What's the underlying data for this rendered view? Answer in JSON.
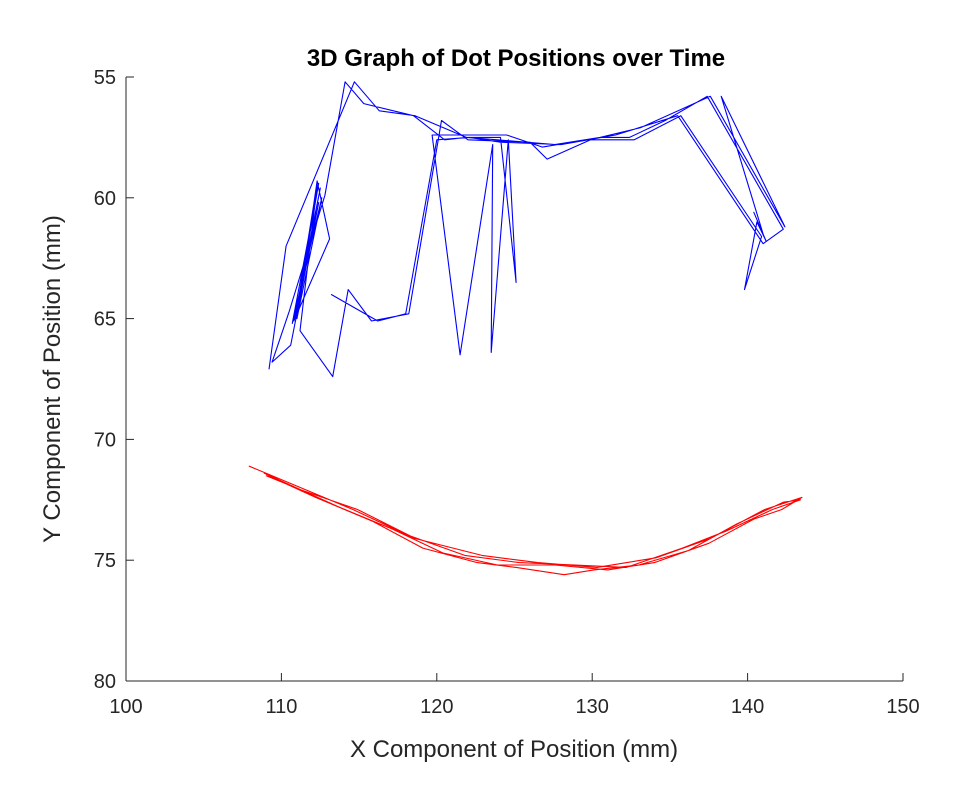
{
  "chart_data": {
    "type": "line",
    "title": "3D Graph of Dot Positions over Time",
    "xlabel": "X Component of Position (mm)",
    "ylabel": "Y Component of Position (mm)",
    "xlim": [
      100,
      150
    ],
    "ylim": [
      55,
      80
    ],
    "y_reversed": true,
    "xticks": [
      100,
      110,
      120,
      130,
      140,
      150
    ],
    "yticks": [
      55,
      60,
      65,
      70,
      75,
      80
    ],
    "grid": false,
    "legend": "none",
    "series": [
      {
        "color": "#0000ff",
        "points": [
          [
            109.2,
            67.1
          ],
          [
            110.3,
            62.0
          ],
          [
            114.7,
            55.2
          ],
          [
            116.3,
            56.4
          ],
          [
            118.6,
            56.6
          ],
          [
            121.9,
            57.5
          ],
          [
            123.9,
            57.6
          ],
          [
            127.6,
            57.8
          ],
          [
            130.5,
            57.5
          ],
          [
            133.1,
            57.1
          ],
          [
            137.6,
            55.8
          ],
          [
            142.4,
            61.2
          ],
          [
            138.3,
            55.8
          ],
          [
            141.0,
            61.5
          ],
          [
            140.4,
            60.6
          ],
          [
            141.2,
            61.8
          ],
          [
            140.6,
            61.0
          ],
          [
            139.8,
            63.8
          ],
          [
            140.9,
            61.6
          ],
          [
            135.7,
            56.6
          ],
          [
            132.7,
            57.6
          ],
          [
            129.9,
            57.6
          ],
          [
            127.1,
            58.4
          ],
          [
            126.0,
            57.7
          ],
          [
            122.0,
            57.6
          ],
          [
            120.3,
            56.8
          ],
          [
            118.2,
            64.8
          ],
          [
            115.8,
            65.1
          ],
          [
            114.3,
            63.8
          ],
          [
            113.3,
            67.4
          ],
          [
            111.2,
            65.5
          ],
          [
            112.3,
            59.5
          ],
          [
            111.0,
            65.0
          ],
          [
            112.6,
            60.0
          ],
          [
            110.7,
            65.2
          ],
          [
            112.4,
            59.4
          ],
          [
            110.9,
            64.9
          ],
          [
            112.5,
            59.6
          ],
          [
            110.8,
            65.1
          ],
          [
            113.1,
            61.7
          ],
          [
            112.3,
            59.3
          ],
          [
            111.1,
            64.7
          ],
          [
            112.2,
            59.8
          ],
          [
            110.9,
            65.0
          ],
          [
            112.4,
            60.2
          ],
          [
            110.6,
            66.1
          ],
          [
            109.4,
            66.8
          ],
          [
            110.5,
            64.7
          ],
          [
            112.8,
            59.9
          ],
          [
            114.1,
            55.2
          ],
          [
            115.3,
            56.1
          ],
          [
            118.5,
            56.6
          ],
          [
            120.5,
            57.6
          ],
          [
            121.9,
            57.5
          ],
          [
            124.1,
            57.5
          ],
          [
            125.1,
            63.5
          ],
          [
            124.6,
            57.6
          ],
          [
            123.5,
            66.4
          ],
          [
            123.6,
            57.8
          ],
          [
            121.5,
            66.5
          ],
          [
            119.7,
            57.4
          ],
          [
            124.5,
            57.4
          ],
          [
            126.8,
            57.9
          ],
          [
            130.5,
            57.5
          ],
          [
            132.4,
            57.5
          ],
          [
            134.7,
            56.8
          ],
          [
            137.4,
            55.8
          ],
          [
            142.3,
            61.3
          ],
          [
            141.0,
            61.9
          ],
          [
            135.5,
            56.6
          ],
          [
            131.5,
            57.4
          ],
          [
            128.0,
            57.8
          ],
          [
            124.1,
            57.7
          ],
          [
            122.1,
            57.5
          ],
          [
            120.0,
            57.6
          ],
          [
            118.0,
            64.8
          ],
          [
            116.2,
            65.1
          ],
          [
            113.2,
            64.0
          ]
        ]
      },
      {
        "color": "#ff0000",
        "points": [
          [
            107.9,
            71.1
          ],
          [
            110.5,
            71.8
          ],
          [
            114.6,
            72.9
          ],
          [
            118.6,
            74.1
          ],
          [
            122.9,
            74.8
          ],
          [
            126.5,
            75.1
          ],
          [
            130.3,
            75.3
          ],
          [
            134.1,
            74.9
          ],
          [
            137.6,
            74.1
          ],
          [
            141.1,
            72.9
          ],
          [
            143.5,
            72.4
          ],
          [
            142.2,
            72.9
          ],
          [
            140.4,
            73.3
          ],
          [
            137.5,
            74.3
          ],
          [
            134.0,
            75.1
          ],
          [
            131.0,
            75.4
          ],
          [
            127.6,
            75.2
          ],
          [
            123.9,
            75.2
          ],
          [
            120.4,
            74.7
          ],
          [
            117.1,
            73.7
          ],
          [
            113.7,
            72.8
          ],
          [
            110.6,
            71.9
          ],
          [
            108.9,
            71.4
          ],
          [
            109.5,
            71.6
          ],
          [
            112.2,
            72.4
          ],
          [
            115.9,
            73.4
          ],
          [
            119.1,
            74.5
          ],
          [
            122.6,
            75.1
          ],
          [
            125.1,
            75.3
          ],
          [
            128.2,
            75.6
          ],
          [
            130.1,
            75.4
          ],
          [
            133.0,
            75.2
          ],
          [
            136.2,
            74.6
          ],
          [
            139.3,
            73.5
          ],
          [
            142.3,
            72.6
          ],
          [
            143.4,
            72.5
          ],
          [
            141.6,
            72.9
          ],
          [
            138.6,
            73.8
          ],
          [
            135.8,
            74.5
          ],
          [
            132.2,
            75.3
          ],
          [
            128.9,
            75.2
          ],
          [
            125.3,
            75.1
          ],
          [
            121.8,
            74.8
          ],
          [
            118.3,
            74.0
          ],
          [
            114.9,
            72.9
          ],
          [
            111.3,
            72.1
          ],
          [
            109.0,
            71.5
          ]
        ]
      }
    ]
  }
}
